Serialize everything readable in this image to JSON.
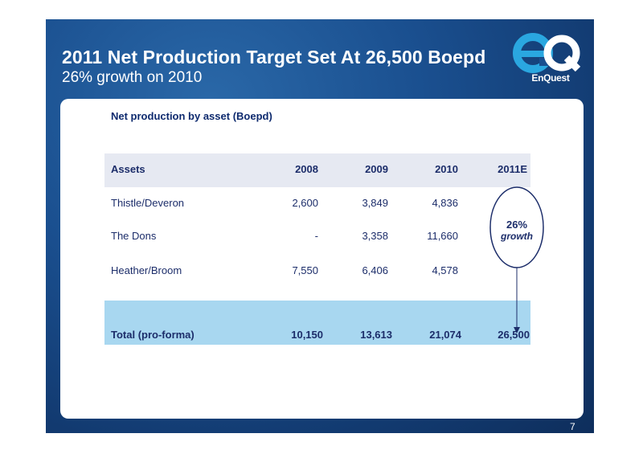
{
  "slide": {
    "title": "2011 Net Production Target Set At 26,500 Boepd",
    "subtitle": "26% growth on 2010",
    "logo_text": "EnQuest",
    "page_number": "7"
  },
  "table": {
    "heading": "Net production by asset (Boepd)",
    "columns": [
      "Assets",
      "2008",
      "2009",
      "2010",
      "2011E"
    ],
    "rows": [
      {
        "asset": "Thistle/Deveron",
        "y2008": "2,600",
        "y2009": "3,849",
        "y2010": "4,836",
        "y2011": ""
      },
      {
        "asset": "The Dons",
        "y2008": "-",
        "y2009": "3,358",
        "y2010": "11,660",
        "y2011": ""
      },
      {
        "asset": "Heather/Broom",
        "y2008": "7,550",
        "y2009": "6,406",
        "y2010": "4,578",
        "y2011": ""
      }
    ],
    "total": {
      "asset": "Total (pro-forma)",
      "y2008": "10,150",
      "y2009": "13,613",
      "y2010": "21,074",
      "y2011": "26,500"
    }
  },
  "callout": {
    "percent": "26%",
    "word": "growth"
  },
  "colors": {
    "background": "#1a4f8f",
    "header_row": "#e6e9f2",
    "total_row": "#a8d7f0",
    "text": "#1c2d6a",
    "logo_blue": "#2aa7e0"
  },
  "icons": {
    "logo": "enquest-eq-logo",
    "arrow": "down-arrow"
  }
}
